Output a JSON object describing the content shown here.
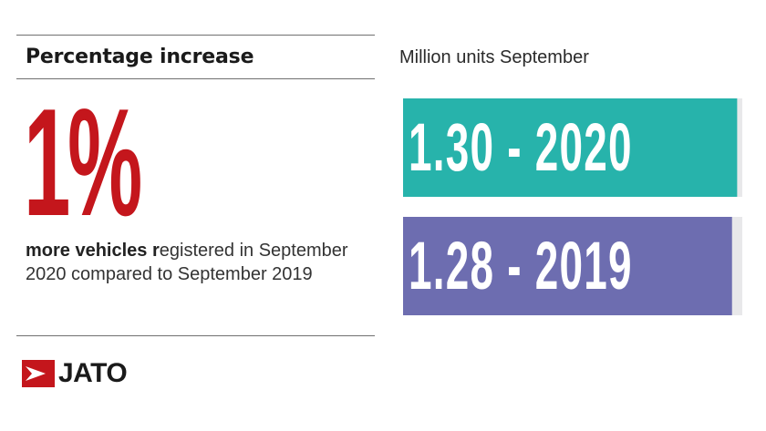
{
  "header": {
    "title": "Percentage increase"
  },
  "highlight": {
    "value": "1%",
    "description_bold": "more vehicles r",
    "description_rest": "egistered in September 2020 compared to September 2019"
  },
  "brand": {
    "name": "JATO",
    "mark_color": "#c4161c"
  },
  "chart_data": {
    "type": "bar",
    "orientation": "horizontal",
    "title": "Million units September",
    "categories": [
      "2020",
      "2019"
    ],
    "values": [
      1.3,
      1.28
    ],
    "labels": [
      "1.30 - 2020",
      "1.28 - 2019"
    ],
    "colors": [
      "#27b3ab",
      "#6d6db0"
    ],
    "track_color": "#e8e8ea",
    "xlim": [
      0,
      1.32
    ]
  }
}
